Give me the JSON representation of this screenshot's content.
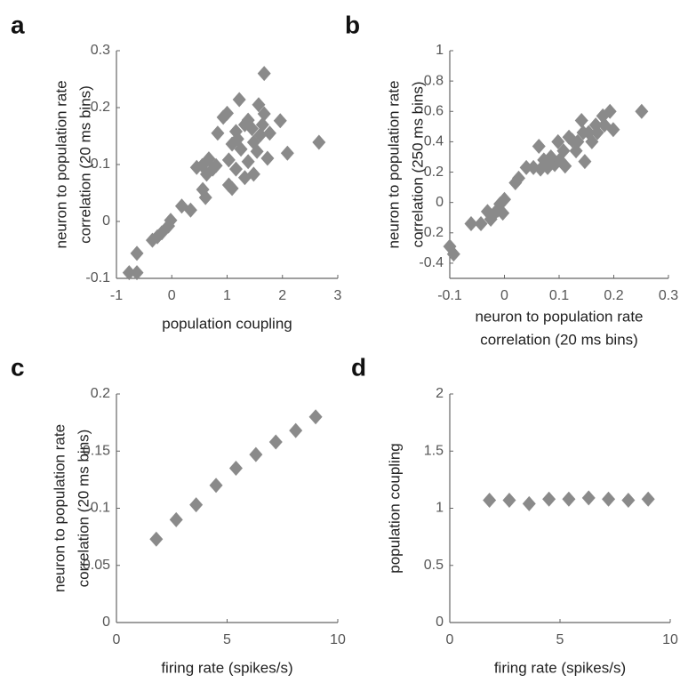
{
  "chart_data": [
    {
      "type": "scatter",
      "panel_label": "a",
      "xlabel": "population coupling",
      "ylabel": [
        "neuron to population rate",
        "correlation (20 ms bins)"
      ],
      "xlim": [
        -1,
        3
      ],
      "ylim": [
        -0.1,
        0.3
      ],
      "xticks": [
        -1,
        0,
        1,
        2,
        3
      ],
      "yticks": [
        -0.1,
        0,
        0.1,
        0.2,
        0.3
      ],
      "color": "#8a8a8a",
      "x": [
        -0.77,
        -0.63,
        -0.63,
        -0.35,
        -0.26,
        -0.18,
        -0.06,
        -0.02,
        0.18,
        0.34,
        0.45,
        0.55,
        0.63,
        0.56,
        0.61,
        0.67,
        0.74,
        0.83,
        0.93,
        1.0,
        1.03,
        1.03,
        1.09,
        1.09,
        1.16,
        1.19,
        1.16,
        1.22,
        1.25,
        1.32,
        1.38,
        1.38,
        1.48,
        1.48,
        1.54,
        1.57,
        1.6,
        1.67,
        1.67,
        1.73,
        1.77,
        1.64,
        1.96,
        2.09,
        2.66,
        1.32,
        1.45,
        0.8
      ],
      "values": [
        -0.09,
        -0.09,
        -0.056,
        -0.033,
        -0.027,
        -0.02,
        -0.008,
        0.002,
        0.027,
        0.02,
        0.095,
        0.098,
        0.083,
        0.056,
        0.042,
        0.11,
        0.092,
        0.155,
        0.183,
        0.19,
        0.108,
        0.064,
        0.058,
        0.136,
        0.158,
        0.145,
        0.092,
        0.214,
        0.127,
        0.077,
        0.105,
        0.178,
        0.139,
        0.083,
        0.123,
        0.205,
        0.152,
        0.189,
        0.26,
        0.111,
        0.155,
        0.17,
        0.177,
        0.12,
        0.139,
        0.17,
        0.163,
        0.098
      ]
    },
    {
      "type": "scatter",
      "panel_label": "b",
      "xlabel": [
        "neuron to population rate",
        "correlation (20 ms bins)"
      ],
      "ylabel": [
        "neuron to population rate",
        "correlation (250 ms bins)"
      ],
      "xlim": [
        -0.1,
        0.3
      ],
      "ylim": [
        -0.5,
        1
      ],
      "xticks": [
        -0.1,
        0,
        0.1,
        0.2,
        0.3
      ],
      "yticks": [
        -0.4,
        -0.2,
        0,
        0.2,
        0.4,
        0.6,
        0.8,
        1
      ],
      "color": "#8a8a8a",
      "x": [
        -0.1,
        -0.093,
        -0.061,
        -0.043,
        -0.031,
        -0.025,
        -0.018,
        -0.012,
        -0.008,
        0,
        -0.003,
        0.02,
        0.026,
        0.04,
        0.053,
        0.063,
        0.066,
        0.072,
        0.079,
        0.085,
        0.092,
        0.098,
        0.101,
        0.108,
        0.111,
        0.118,
        0.124,
        0.131,
        0.134,
        0.141,
        0.144,
        0.147,
        0.154,
        0.16,
        0.167,
        0.17,
        0.18,
        0.183,
        0.193,
        0.199,
        0.251
      ],
      "values": [
        -0.29,
        -0.34,
        -0.14,
        -0.14,
        -0.06,
        -0.11,
        -0.07,
        -0.05,
        -0.01,
        0.02,
        -0.07,
        0.13,
        0.16,
        0.23,
        0.23,
        0.37,
        0.22,
        0.28,
        0.23,
        0.3,
        0.25,
        0.4,
        0.28,
        0.34,
        0.24,
        0.43,
        0.41,
        0.34,
        0.4,
        0.54,
        0.46,
        0.27,
        0.46,
        0.4,
        0.51,
        0.46,
        0.57,
        0.51,
        0.6,
        0.48,
        0.6
      ]
    },
    {
      "type": "scatter",
      "panel_label": "c",
      "xlabel": "firing rate (spikes/s)",
      "ylabel": [
        "neuron to population rate",
        "correlation (20 ms bins)"
      ],
      "xlim": [
        0,
        10
      ],
      "ylim": [
        0,
        0.2
      ],
      "xticks": [
        0,
        5,
        10
      ],
      "yticks": [
        0,
        0.05,
        0.1,
        0.15,
        0.2
      ],
      "color": "#8a8a8a",
      "x": [
        1.8,
        2.7,
        3.6,
        4.5,
        5.4,
        6.3,
        7.2,
        8.1,
        9.0
      ],
      "values": [
        0.073,
        0.09,
        0.103,
        0.12,
        0.135,
        0.147,
        0.158,
        0.168,
        0.18
      ]
    },
    {
      "type": "scatter",
      "panel_label": "d",
      "xlabel": "firing rate (spikes/s)",
      "ylabel": "population coupling",
      "xlim": [
        0,
        10
      ],
      "ylim": [
        0,
        2
      ],
      "xticks": [
        0,
        5,
        10
      ],
      "yticks": [
        0,
        0.5,
        1,
        1.5,
        2
      ],
      "color": "#8a8a8a",
      "x": [
        1.8,
        2.7,
        3.6,
        4.5,
        5.4,
        6.3,
        7.2,
        8.1,
        9.0
      ],
      "values": [
        1.07,
        1.07,
        1.04,
        1.08,
        1.08,
        1.09,
        1.08,
        1.07,
        1.08
      ]
    }
  ]
}
